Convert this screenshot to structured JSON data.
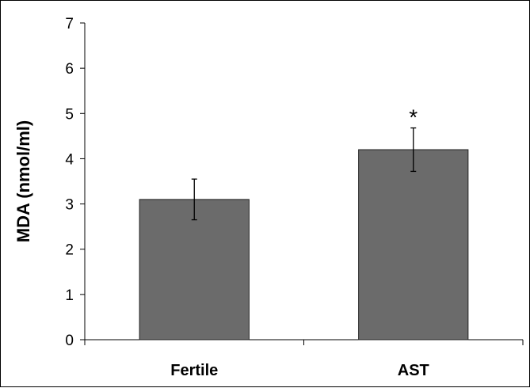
{
  "chart_data": {
    "type": "bar",
    "categories": [
      "Fertile",
      "AST"
    ],
    "values": [
      3.1,
      4.2
    ],
    "errors": [
      0.45,
      0.48
    ],
    "annotations": [
      "",
      "*"
    ],
    "ylabel": "MDA (nmol/ml)",
    "xlabel": "",
    "ylim": [
      0,
      7
    ],
    "yticks": [
      "0",
      "1",
      "2",
      "3",
      "4",
      "5",
      "6",
      "7"
    ],
    "grid": false,
    "legend": "none",
    "bar_color": "#6b6b6b",
    "bar_edge_color": "#222222"
  }
}
